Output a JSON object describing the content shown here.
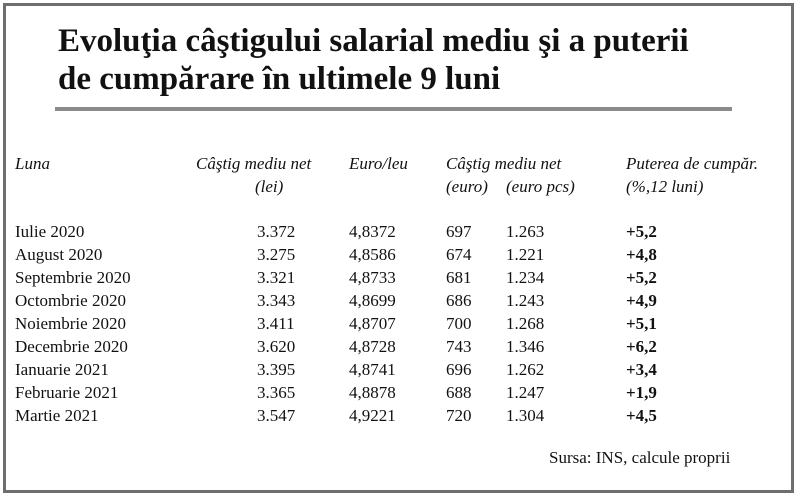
{
  "title": {
    "line1": "Evoluţia câştigului salarial mediu şi a puterii",
    "line2": "de cumpărare în ultimele 9 luni"
  },
  "headers": {
    "luna": "Luna",
    "castig_net_line1": "Câştig mediu net",
    "castig_net_line2": "(lei)",
    "euro_leu": "Euro/leu",
    "castig_euro_line1": "Câştig mediu net",
    "castig_euro_sub1": "(euro)",
    "castig_euro_sub2": "(euro pcs)",
    "putere_line1": "Puterea de cumpăr.",
    "putere_line2": "(%,12 luni)"
  },
  "rows": [
    {
      "luna": "Iulie 2020",
      "net_lei": "3.372",
      "euro_leu": "4,8372",
      "net_euro": "697",
      "net_euro_pcs": "1.263",
      "putere": "+5,2"
    },
    {
      "luna": "August 2020",
      "net_lei": "3.275",
      "euro_leu": "4,8586",
      "net_euro": "674",
      "net_euro_pcs": "1.221",
      "putere": "+4,8"
    },
    {
      "luna": "Septembrie 2020",
      "net_lei": "3.321",
      "euro_leu": "4,8733",
      "net_euro": "681",
      "net_euro_pcs": "1.234",
      "putere": "+5,2"
    },
    {
      "luna": "Octombrie 2020",
      "net_lei": "3.343",
      "euro_leu": "4,8699",
      "net_euro": "686",
      "net_euro_pcs": "1.243",
      "putere": "+4,9"
    },
    {
      "luna": "Noiembrie 2020",
      "net_lei": "3.411",
      "euro_leu": "4,8707",
      "net_euro": "700",
      "net_euro_pcs": "1.268",
      "putere": "+5,1"
    },
    {
      "luna": "Decembrie 2020",
      "net_lei": "3.620",
      "euro_leu": "4,8728",
      "net_euro": "743",
      "net_euro_pcs": "1.346",
      "putere": "+6,2"
    },
    {
      "luna": "Ianuarie 2021",
      "net_lei": "3.395",
      "euro_leu": "4,8741",
      "net_euro": "696",
      "net_euro_pcs": "1.262",
      "putere": "+3,4"
    },
    {
      "luna": "Februarie 2021",
      "net_lei": "3.365",
      "euro_leu": "4,8878",
      "net_euro": "688",
      "net_euro_pcs": "1.247",
      "putere": "+1,9"
    },
    {
      "luna": "Martie 2021",
      "net_lei": "3.547",
      "euro_leu": "4,9221",
      "net_euro": "720",
      "net_euro_pcs": "1.304",
      "putere": "+4,5"
    }
  ],
  "source": "Sursa: INS, calcule proprii"
}
